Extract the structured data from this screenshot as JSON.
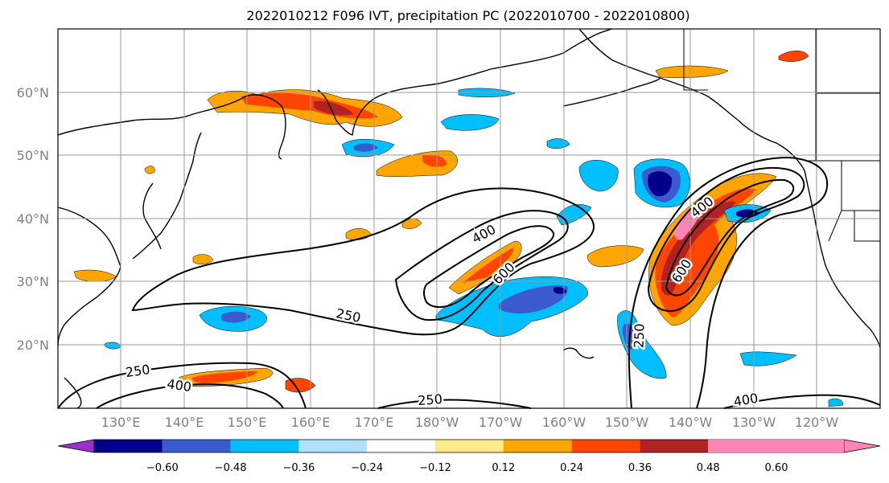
{
  "title": "2022010212 F096 IVT, precipitation PC (2022010700 - 2022010800)",
  "map": {
    "lon_labels": [
      "130°E",
      "140°E",
      "150°E",
      "160°E",
      "170°E",
      "180°W",
      "170°W",
      "160°W",
      "150°W",
      "140°W",
      "130°W",
      "120°W"
    ],
    "lat_labels": [
      "60°N",
      "50°N",
      "40°N",
      "30°N",
      "20°N"
    ],
    "gridlines": true,
    "ivt_contour_levels": [
      "250",
      "400",
      "600"
    ],
    "ivt_contour_labels": [
      "250",
      "400",
      "600",
      "250",
      "400",
      "250",
      "250",
      "400",
      "600",
      "400"
    ]
  },
  "colorbar": {
    "tick_labels": [
      "−0.60",
      "−0.48",
      "−0.36",
      "−0.24",
      "−0.12",
      "0.12",
      "0.24",
      "0.36",
      "0.48",
      "0.60"
    ],
    "colors": [
      "#9932cc",
      "#00008b",
      "#3a5bcd",
      "#00bfff",
      "#b0e0ff",
      "#ffffff",
      "#ffea8a",
      "#ffa500",
      "#ff4500",
      "#b22222",
      "#ff85b4"
    ],
    "extend": "both"
  }
}
